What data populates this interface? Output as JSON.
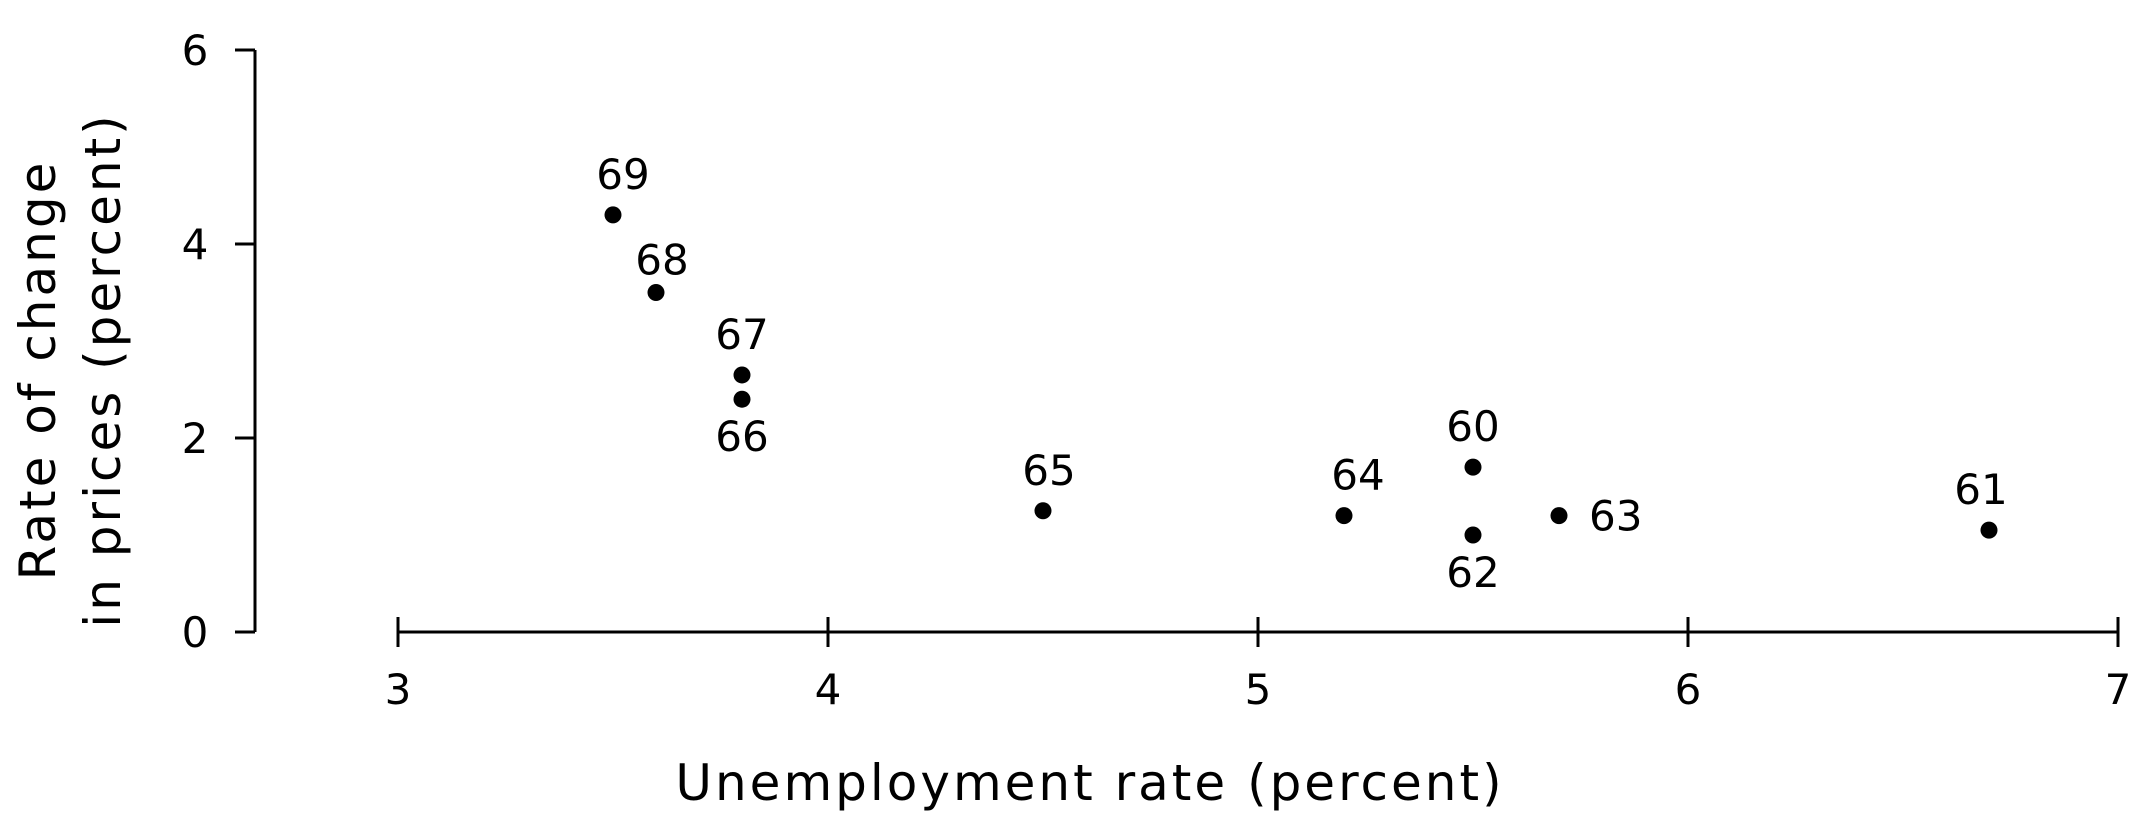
{
  "chart_data": {
    "type": "scatter",
    "title": "",
    "xlabel": "Unemployment rate (percent)",
    "ylabel_line1": "Rate of change",
    "ylabel_line2": "in prices (percent)",
    "xlim": [
      3,
      7
    ],
    "ylim": [
      0,
      6
    ],
    "x_ticks": [
      3,
      4,
      5,
      6,
      7
    ],
    "y_ticks": [
      0,
      2,
      4,
      6
    ],
    "grid": false,
    "points": [
      {
        "label": "60",
        "x": 5.5,
        "y": 1.7
      },
      {
        "label": "61",
        "x": 6.7,
        "y": 1.05
      },
      {
        "label": "62",
        "x": 5.5,
        "y": 1.0
      },
      {
        "label": "63",
        "x": 5.7,
        "y": 1.2
      },
      {
        "label": "64",
        "x": 5.2,
        "y": 1.2
      },
      {
        "label": "65",
        "x": 4.5,
        "y": 1.25
      },
      {
        "label": "66",
        "x": 3.8,
        "y": 2.4
      },
      {
        "label": "67",
        "x": 3.8,
        "y": 2.65
      },
      {
        "label": "68",
        "x": 3.6,
        "y": 3.5
      },
      {
        "label": "69",
        "x": 3.5,
        "y": 4.3
      }
    ]
  }
}
